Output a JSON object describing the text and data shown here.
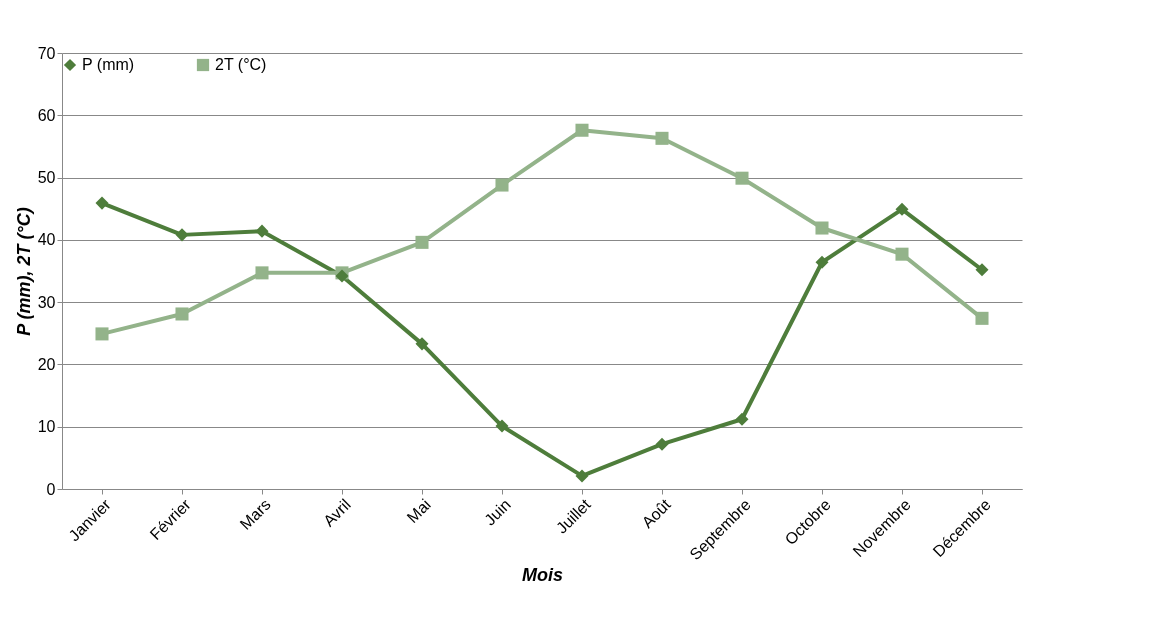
{
  "chart_data": {
    "type": "line",
    "xlabel": "Mois",
    "ylabel": "P (mm), 2T (°C)",
    "categories": [
      "Janvier",
      "Février",
      "Mars",
      "Avril",
      "Mai",
      "Juin",
      "Juillet",
      "Août",
      "Septembre",
      "Octobre",
      "Novembre",
      "Décembre"
    ],
    "series": [
      {
        "name": "P (mm)",
        "color": "#4e7d3b",
        "marker": "diamond",
        "values": [
          45.9,
          40.8,
          41.4,
          34.2,
          23.3,
          10.1,
          2.1,
          7.2,
          11.2,
          36.4,
          44.9,
          35.2
        ]
      },
      {
        "name": "2T (°C)",
        "color": "#93b38a",
        "marker": "square",
        "values": [
          24.9,
          28.1,
          34.7,
          34.7,
          39.6,
          48.8,
          57.6,
          56.3,
          49.9,
          41.9,
          37.7,
          27.4
        ]
      }
    ],
    "ylim": [
      0,
      70
    ],
    "yticks": [
      0,
      10,
      20,
      30,
      40,
      50,
      60,
      70
    ],
    "grid": "y",
    "legend": "top",
    "line_style": "solid"
  }
}
